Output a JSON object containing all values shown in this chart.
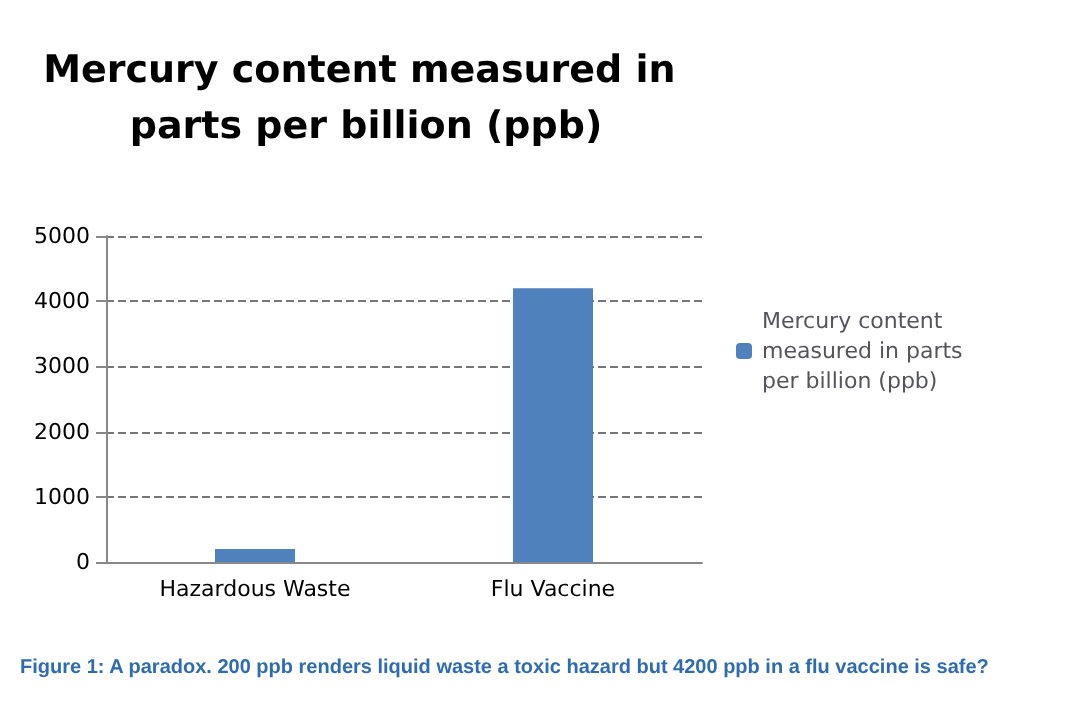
{
  "chart_data": {
    "type": "bar",
    "title": "Mercury content measured in parts per billion (ppb)",
    "categories": [
      "Hazardous Waste",
      "Flu Vaccine"
    ],
    "series": [
      {
        "name": "Mercury content measured in parts per billion (ppb)",
        "color": "#4f81bd",
        "values": [
          200,
          4200
        ]
      }
    ],
    "ylim": [
      0,
      5000
    ],
    "yticks": [
      0,
      1000,
      2000,
      3000,
      4000,
      5000
    ],
    "grid": "y",
    "legend": "right",
    "annotations": [
      "Figure 1: A paradox. 200 ppb renders liquid waste a toxic hazard but 4200 ppb in a flu vaccine is safe?"
    ]
  }
}
